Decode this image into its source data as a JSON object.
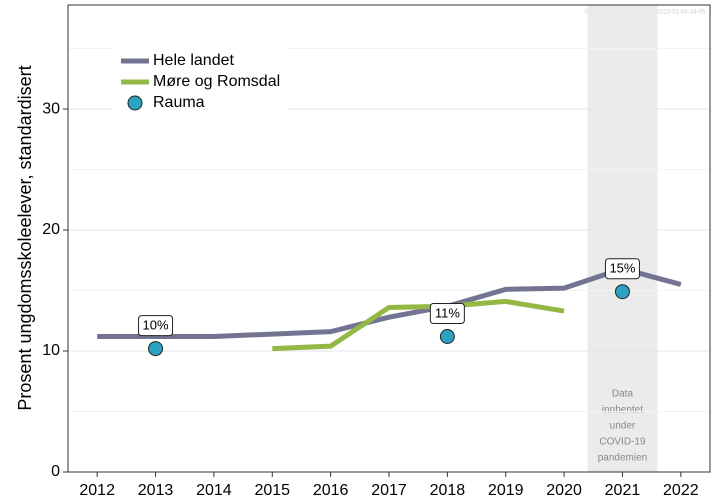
{
  "chart_data": {
    "type": "line",
    "watermark": "DEPRESJON_UNGDATA_2023-01-04-14-09",
    "y_label": "Prosent ungdomsskoleelever, standardisert",
    "x": [
      2012,
      2013,
      2014,
      2015,
      2016,
      2017,
      2018,
      2019,
      2020,
      2021,
      2022
    ],
    "xlim": [
      2011.5,
      2022.5
    ],
    "xticks": [
      2012,
      2013,
      2014,
      2015,
      2016,
      2017,
      2018,
      2019,
      2020,
      2021,
      2022
    ],
    "ylim": [
      0,
      38.6
    ],
    "yticks": [
      0,
      10,
      20,
      30
    ],
    "minor_yticks": [
      5,
      15,
      25,
      35
    ],
    "grid": true,
    "legend": "top-left",
    "series": [
      {
        "name": "Hele landet",
        "color": "#737491",
        "style": "line",
        "values": [
          11.2,
          11.2,
          11.2,
          11.4,
          11.6,
          12.8,
          13.7,
          15.1,
          15.2,
          16.8,
          15.5
        ]
      },
      {
        "name": "Møre og Romsdal",
        "color": "#93b844",
        "style": "line",
        "values": [
          null,
          null,
          null,
          10.2,
          10.4,
          13.6,
          13.7,
          14.1,
          13.3,
          null,
          null
        ]
      },
      {
        "name": "Rauma",
        "color": "#2ba2c2",
        "style": "point",
        "values": [
          null,
          10.2,
          null,
          null,
          null,
          null,
          11.2,
          null,
          null,
          14.9,
          null
        ],
        "value_labels": [
          null,
          "10%",
          null,
          null,
          null,
          null,
          "11%",
          null,
          null,
          "15%",
          null
        ]
      }
    ],
    "annotation": {
      "x_range": [
        2020.4,
        2021.6
      ],
      "text_lines": [
        "Data",
        "innhentet",
        "under",
        "COVID-19",
        "pandemien"
      ]
    }
  }
}
